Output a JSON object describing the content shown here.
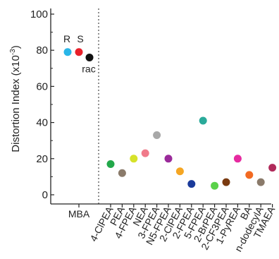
{
  "chart_data": {
    "type": "scatter",
    "ylabel": "Distortion Index (x10",
    "ylabel_sup": "-3",
    "ylabel_close": ")",
    "ylim": [
      0,
      100
    ],
    "yticks": [
      0,
      20,
      40,
      60,
      80,
      100
    ],
    "grid": false,
    "mba_group": {
      "label": "MBA",
      "points": [
        {
          "label": "R",
          "y": 79,
          "color": "#29b6e8"
        },
        {
          "label": "S",
          "y": 79,
          "color": "#e8202a"
        },
        {
          "label": "rac",
          "y": 76,
          "color": "#111111"
        }
      ]
    },
    "categories": [
      "4-ClPEA",
      "PEA",
      "4-FPEA",
      "NEA",
      "3-FPEA",
      "N5-FPEA",
      "2-ClPEA",
      "2-FPEA",
      "5-FPEA",
      "2-BrPEA",
      "2-CF3PEA",
      "1-PyREA",
      "BA",
      "n-dodecylA",
      "TMAEA"
    ],
    "values": [
      17,
      12,
      20,
      23,
      33,
      20,
      13,
      6,
      41,
      5,
      7,
      20,
      11,
      7,
      15
    ],
    "colors": [
      "#22a84a",
      "#8a7a6a",
      "#d6e22a",
      "#f07a8a",
      "#a8a8a8",
      "#9a2a9a",
      "#f5a623",
      "#1a3a9a",
      "#2aaa9a",
      "#5ad14a",
      "#7a3a10",
      "#e62aa0",
      "#f26a22",
      "#8a7a6a",
      "#b02a5a"
    ]
  }
}
